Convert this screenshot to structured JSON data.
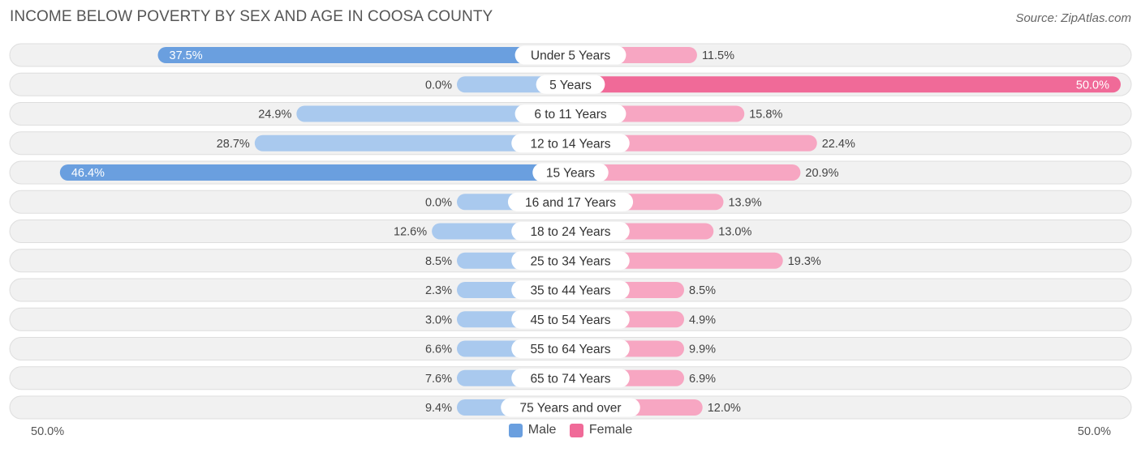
{
  "title": "INCOME BELOW POVERTY BY SEX AND AGE IN COOSA COUNTY",
  "source": "Source: ZipAtlas.com",
  "axis": {
    "left_label": "50.0%",
    "right_label": "50.0%"
  },
  "legend": {
    "male_label": "Male",
    "female_label": "Female"
  },
  "colors": {
    "male_strong": "#6a9fdf",
    "male_light": "#a9c9ee",
    "female_strong": "#f06a98",
    "female_light": "#f7a6c2",
    "row_bg": "#f1f1f1",
    "row_border": "#dedede"
  },
  "chart_data": {
    "type": "bar",
    "orientation": "diverging-horizontal",
    "title": "INCOME BELOW POVERTY BY SEX AND AGE IN COOSA COUNTY",
    "xlim": [
      -50,
      50
    ],
    "unit": "%",
    "categories": [
      "Under 5 Years",
      "5 Years",
      "6 to 11 Years",
      "12 to 14 Years",
      "15 Years",
      "16 and 17 Years",
      "18 to 24 Years",
      "25 to 34 Years",
      "35 to 44 Years",
      "45 to 54 Years",
      "55 to 64 Years",
      "65 to 74 Years",
      "75 Years and over"
    ],
    "series": [
      {
        "name": "Male",
        "values": [
          37.5,
          0.0,
          24.9,
          28.7,
          46.4,
          0.0,
          12.6,
          8.5,
          2.3,
          3.0,
          6.6,
          7.6,
          9.4
        ],
        "labels": [
          "37.5%",
          "0.0%",
          "24.9%",
          "28.7%",
          "46.4%",
          "0.0%",
          "12.6%",
          "8.5%",
          "2.3%",
          "3.0%",
          "6.6%",
          "7.6%",
          "9.4%"
        ]
      },
      {
        "name": "Female",
        "values": [
          11.5,
          50.0,
          15.8,
          22.4,
          20.9,
          13.9,
          13.0,
          19.3,
          8.5,
          4.9,
          9.9,
          6.9,
          12.0
        ],
        "labels": [
          "11.5%",
          "50.0%",
          "15.8%",
          "22.4%",
          "20.9%",
          "13.9%",
          "13.0%",
          "19.3%",
          "8.5%",
          "4.9%",
          "9.9%",
          "6.9%",
          "12.0%"
        ]
      }
    ]
  }
}
